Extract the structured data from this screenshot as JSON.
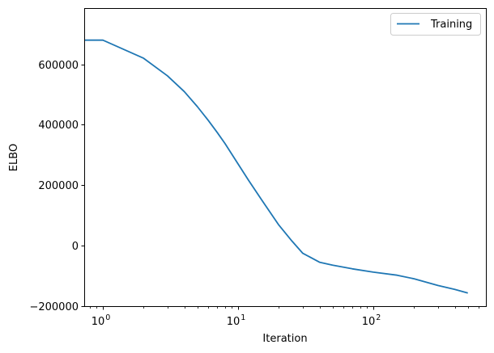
{
  "chart_data": {
    "type": "line",
    "title": "",
    "xlabel": "Iteration",
    "ylabel": "ELBO",
    "xscale": "log",
    "xlim": [
      0.73,
      560
    ],
    "ylim": [
      -200000,
      780000
    ],
    "grid": false,
    "legend_position": "upper right",
    "x_ticks": [
      {
        "value": 1,
        "base": "10",
        "exp": "0"
      },
      {
        "value": 10,
        "base": "10",
        "exp": "1"
      },
      {
        "value": 100,
        "base": "10",
        "exp": "2"
      }
    ],
    "y_ticks": [
      {
        "value": -200000,
        "label": "−200000"
      },
      {
        "value": 0,
        "label": "0"
      },
      {
        "value": 200000,
        "label": "200000"
      },
      {
        "value": 400000,
        "label": "400000"
      },
      {
        "value": 600000,
        "label": "600000"
      }
    ],
    "series": [
      {
        "name": "Training",
        "color": "#1f77b4",
        "x": [
          0.73,
          1,
          2,
          3,
          4,
          5,
          6,
          7,
          8,
          10,
          12,
          15,
          20,
          25,
          30,
          40,
          50,
          70,
          100,
          150,
          200,
          300,
          400,
          500
        ],
        "y": [
          680000,
          680000,
          620000,
          562000,
          510000,
          460000,
          415000,
          375000,
          338000,
          270000,
          215000,
          150000,
          68000,
          15000,
          -25000,
          -55000,
          -65000,
          -77000,
          -88000,
          -98000,
          -110000,
          -132000,
          -145000,
          -157000
        ]
      }
    ]
  }
}
